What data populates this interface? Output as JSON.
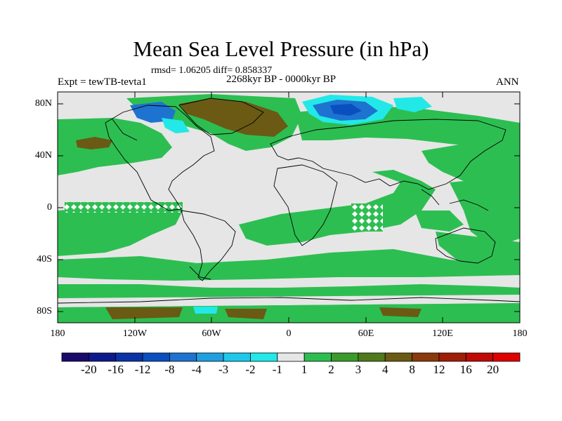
{
  "title": "Mean Sea Level Pressure (in hPa)",
  "stats": "rmsd= 1.06205 diff= 0.858337",
  "experiment": "Expt = tewTB-tevta1",
  "period": "2268kyr BP - 0000kyr BP",
  "season": "ANN",
  "lat_ticks": [
    "80N",
    "40N",
    "0",
    "40S",
    "80S"
  ],
  "lon_ticks": [
    "180",
    "120W",
    "60W",
    "0",
    "60E",
    "120E",
    "180"
  ],
  "colorbar": {
    "labels": [
      "-20",
      "-16",
      "-12",
      "-8",
      "-4",
      "-3",
      "-2",
      "-1",
      "1",
      "2",
      "3",
      "4",
      "8",
      "12",
      "16",
      "20"
    ],
    "colors": [
      "#1a0a6b",
      "#0d1a8c",
      "#0a33a6",
      "#0a4fc0",
      "#1e73d0",
      "#1ea0e0",
      "#1ec8ea",
      "#22e8e8",
      "#e6e6e6",
      "#2dbe52",
      "#3a9a2a",
      "#4e7a1c",
      "#6a5a14",
      "#8a3a0c",
      "#a01e08",
      "#c00a06",
      "#e00000"
    ]
  },
  "legend_colors": {
    "near_zero": "#e6e6e6",
    "positive_1_2": "#2dbe52",
    "positive_3_4": "#4e7a1c",
    "negative_deep": "#0a33a6",
    "negative_light": "#22e8e8"
  }
}
